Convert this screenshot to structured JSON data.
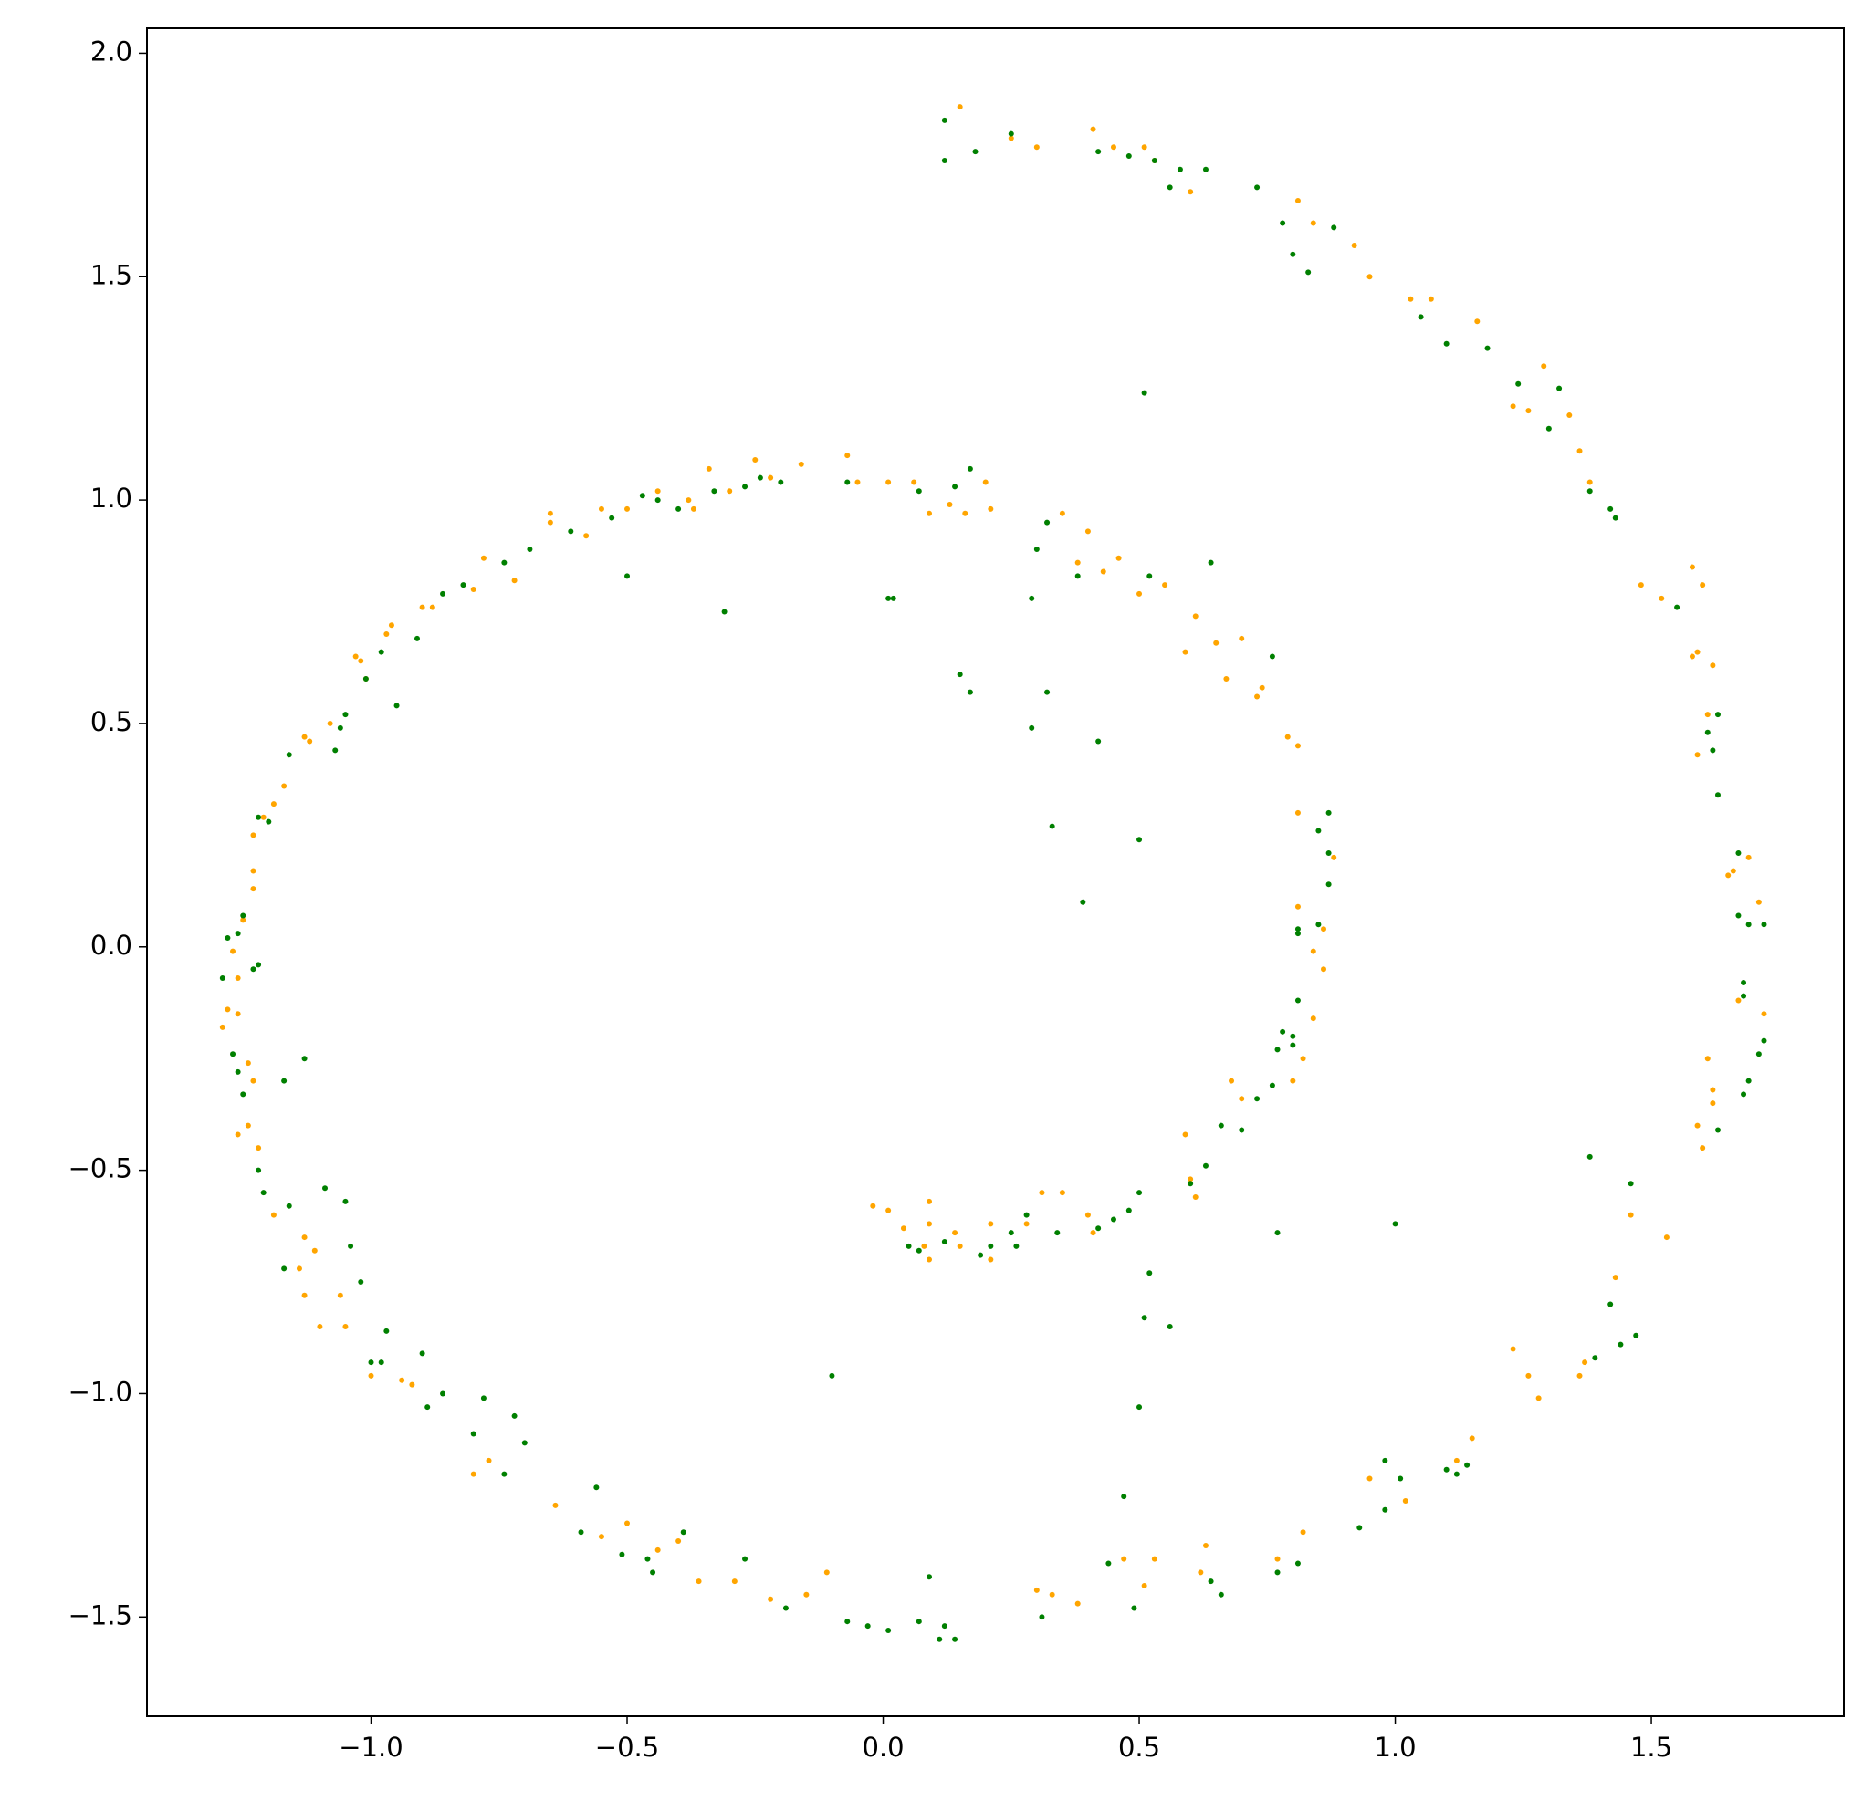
{
  "chart_data": {
    "type": "scatter",
    "xlim": [
      -1.4376,
      1.876
    ],
    "ylim": [
      -1.722,
      2.056
    ],
    "xticks": [
      {
        "value": -1.0,
        "label": "−1.0"
      },
      {
        "value": -0.5,
        "label": "−0.5"
      },
      {
        "value": 0.0,
        "label": "0.0"
      },
      0.5,
      {
        "value": 1.0,
        "label": "1.0"
      },
      1.5
    ],
    "yticks": [
      {
        "value": -1.5,
        "label": "−1.5"
      },
      {
        "value": -1.0,
        "label": "−1.0"
      },
      {
        "value": -0.5,
        "label": "−0.5"
      },
      {
        "value": 0.0,
        "label": "0.0"
      },
      0.5,
      {
        "value": 1.0,
        "label": "1.0"
      },
      1.5,
      {
        "value": 2.0,
        "label": "2.0"
      }
    ],
    "grid": false,
    "series": [
      {
        "color": "#ffa500",
        "x": [
          0.15,
          0.25,
          0.3,
          0.41,
          0.45,
          0.51,
          0.53,
          0.6,
          0.81,
          0.84,
          0.92,
          0.95,
          1.03,
          1.07,
          1.16,
          1.23,
          1.26,
          1.29,
          1.34,
          1.36,
          1.38,
          1.48,
          1.52,
          1.58,
          1.6,
          1.59,
          1.58,
          1.62,
          1.61,
          1.59,
          1.65,
          1.66,
          1.69,
          1.71,
          1.72,
          1.67,
          1.61,
          1.62,
          1.62,
          1.59,
          1.6,
          1.53,
          1.46,
          1.43,
          1.37,
          1.36,
          1.28,
          1.26,
          1.23,
          1.15,
          1.12,
          1.02,
          0.95,
          0.82,
          0.77,
          0.63,
          0.62,
          0.53,
          0.51,
          0.47,
          0.38,
          0.33,
          0.3,
          -0.02,
          0.01,
          0.04,
          0.08,
          0.09,
          0.09,
          0.09,
          0.14,
          0.15,
          0.21,
          0.21,
          0.28,
          0.31,
          0.35,
          0.4,
          0.41,
          0.59,
          0.6,
          0.61,
          0.68,
          0.7,
          0.8,
          0.84,
          0.82,
          0.84,
          0.86,
          0.86,
          0.81,
          0.88,
          0.81,
          0.81,
          0.79,
          0.73,
          0.74,
          0.7,
          0.67,
          0.65,
          0.61,
          0.59,
          0.55,
          0.5,
          0.46,
          0.43,
          0.4,
          0.38,
          0.35,
          0.2,
          0.21,
          0.16,
          0.13,
          0.09,
          0.06,
          0.01,
          -0.05,
          -0.07,
          -0.16,
          -0.22,
          -0.25,
          -0.3,
          -0.34,
          -0.37,
          -0.38,
          -0.44,
          -0.5,
          -0.55,
          -0.58,
          -0.65,
          -0.65,
          -0.72,
          -0.78,
          -0.8,
          -0.88,
          -0.9,
          -0.96,
          -0.97,
          -1.01,
          -1.02,
          -1.03,
          -1.08,
          -1.12,
          -1.13,
          -1.17,
          -1.19,
          -1.21,
          -1.23,
          -1.23,
          -1.23,
          -1.25,
          -1.27,
          -1.28,
          -1.29,
          -1.26,
          -1.26,
          -1.24,
          -1.23,
          -1.24,
          -1.26,
          -1.22,
          -1.19,
          -1.13,
          -1.11,
          -1.14,
          -1.13,
          -1.06,
          -1.1,
          -1.05,
          -1.0,
          -0.94,
          -0.92,
          -0.8,
          -0.77,
          -0.64,
          -0.55,
          -0.5,
          -0.44,
          -0.4,
          -0.36,
          -0.29,
          -0.22,
          -0.15,
          -0.11
        ],
        "values": [
          1.88,
          1.81,
          1.79,
          1.83,
          1.79,
          1.79,
          1.76,
          1.69,
          1.67,
          1.62,
          1.57,
          1.5,
          1.45,
          1.45,
          1.4,
          1.21,
          1.2,
          1.3,
          1.19,
          1.11,
          1.04,
          0.81,
          0.78,
          0.85,
          0.81,
          0.66,
          0.65,
          0.63,
          0.52,
          0.43,
          0.16,
          0.17,
          0.2,
          0.1,
          -0.15,
          -0.12,
          -0.25,
          -0.32,
          -0.35,
          -0.4,
          -0.45,
          -0.65,
          -0.6,
          -0.74,
          -0.93,
          -0.96,
          -1.01,
          -0.96,
          -0.9,
          -1.1,
          -1.15,
          -1.24,
          -1.19,
          -1.31,
          -1.37,
          -1.34,
          -1.4,
          -1.37,
          -1.43,
          -1.37,
          -1.47,
          -1.45,
          -1.44,
          -0.58,
          -0.59,
          -0.63,
          -0.67,
          -0.57,
          -0.62,
          -0.7,
          -0.64,
          -0.67,
          -0.62,
          -0.7,
          -0.62,
          -0.55,
          -0.55,
          -0.6,
          -0.64,
          -0.42,
          -0.52,
          -0.56,
          -0.3,
          -0.34,
          -0.3,
          -0.16,
          -0.25,
          -0.01,
          -0.05,
          0.04,
          0.09,
          0.2,
          0.3,
          0.45,
          0.47,
          0.56,
          0.58,
          0.69,
          0.6,
          0.68,
          0.74,
          0.66,
          0.81,
          0.79,
          0.87,
          0.84,
          0.93,
          0.86,
          0.97,
          1.04,
          0.98,
          0.97,
          0.99,
          0.97,
          1.04,
          1.04,
          1.04,
          1.1,
          1.08,
          1.05,
          1.09,
          1.02,
          1.07,
          0.98,
          1.0,
          1.02,
          0.98,
          0.98,
          0.92,
          0.95,
          0.97,
          0.82,
          0.87,
          0.8,
          0.76,
          0.76,
          0.72,
          0.7,
          0.6,
          0.64,
          0.65,
          0.5,
          0.46,
          0.47,
          0.36,
          0.32,
          0.29,
          0.25,
          0.17,
          0.13,
          0.06,
          -0.01,
          -0.14,
          -0.18,
          -0.07,
          -0.15,
          -0.26,
          -0.3,
          -0.4,
          -0.42,
          -0.45,
          -0.6,
          -0.65,
          -0.68,
          -0.72,
          -0.78,
          -0.78,
          -0.85,
          -0.85,
          -0.96,
          -0.97,
          -0.98,
          -1.18,
          -1.15,
          -1.25,
          -1.32,
          -1.29,
          -1.35,
          -1.33,
          -1.42,
          -1.42,
          -1.46,
          -1.45,
          -1.4
        ]
      },
      {
        "color": "#008000",
        "x": [
          0.12,
          0.12,
          0.18,
          0.25,
          0.42,
          0.48,
          0.53,
          0.56,
          0.58,
          0.63,
          0.73,
          0.78,
          0.8,
          0.83,
          0.88,
          1.05,
          1.1,
          1.18,
          1.24,
          1.32,
          1.3,
          1.42,
          1.43,
          1.38,
          1.55,
          1.61,
          1.62,
          1.63,
          1.63,
          1.67,
          1.67,
          1.69,
          1.72,
          1.68,
          1.68,
          1.72,
          1.71,
          1.69,
          1.68,
          1.63,
          1.46,
          1.38,
          1.42,
          1.47,
          1.44,
          1.39,
          1.0,
          1.1,
          1.12,
          1.14,
          1.01,
          0.98,
          0.98,
          0.93,
          0.81,
          0.77,
          0.66,
          0.64,
          0.49,
          0.44,
          0.31,
          0.47,
          0.5,
          0.51,
          0.52,
          0.56,
          0.51,
          0.15,
          0.17,
          0.29,
          0.32,
          0.42,
          0.33,
          0.5,
          0.39,
          -0.31,
          0.02,
          0.01,
          -0.5,
          -0.95,
          -1.13,
          -1.17,
          -0.1,
          0.09,
          0.77,
          0.05,
          0.07,
          0.12,
          0.19,
          0.21,
          0.25,
          0.26,
          0.28,
          0.34,
          0.42,
          0.45,
          0.48,
          0.5,
          0.6,
          0.63,
          0.66,
          0.7,
          0.73,
          0.76,
          0.77,
          0.78,
          0.8,
          0.81,
          0.8,
          0.81,
          0.85,
          0.87,
          0.87,
          0.85,
          0.87,
          0.81,
          0.76,
          0.64,
          0.52,
          0.38,
          0.3,
          0.32,
          0.29,
          0.17,
          0.14,
          0.07,
          -0.07,
          -0.2,
          -0.24,
          -0.27,
          -0.33,
          -0.4,
          -0.44,
          -0.47,
          -0.53,
          -0.61,
          -0.69,
          -0.74,
          -0.82,
          -0.86,
          -0.91,
          -0.98,
          -1.01,
          -1.05,
          -1.06,
          -1.07,
          -1.16,
          -1.2,
          -1.22,
          -1.25,
          -1.26,
          -1.28,
          -1.29,
          -1.27,
          -1.26,
          -1.25,
          -1.22,
          -1.23,
          -1.22,
          -1.21,
          -1.16,
          -1.17,
          -1.09,
          -1.05,
          -1.04,
          -1.02,
          -0.97,
          -1.0,
          -0.98,
          -0.9,
          -0.89,
          -0.86,
          -0.78,
          -0.8,
          -0.74,
          -0.72,
          -0.7,
          -0.59,
          -0.56,
          -0.51,
          -0.46,
          -0.45,
          -0.39,
          -0.27,
          -0.19,
          -0.07,
          -0.03,
          0.01,
          0.07,
          0.11,
          0.12,
          0.14
        ],
        "values": [
          1.85,
          1.76,
          1.78,
          1.82,
          1.78,
          1.77,
          1.76,
          1.7,
          1.74,
          1.74,
          1.7,
          1.62,
          1.55,
          1.51,
          1.61,
          1.41,
          1.35,
          1.34,
          1.26,
          1.25,
          1.16,
          0.98,
          0.96,
          1.02,
          0.76,
          0.48,
          0.44,
          0.52,
          0.34,
          0.21,
          0.07,
          0.05,
          0.05,
          -0.08,
          -0.11,
          -0.21,
          -0.24,
          -0.3,
          -0.33,
          -0.41,
          -0.53,
          -0.47,
          -0.8,
          -0.87,
          -0.89,
          -0.92,
          -0.62,
          -1.17,
          -1.18,
          -1.16,
          -1.19,
          -1.15,
          -1.26,
          -1.3,
          -1.38,
          -1.4,
          -1.45,
          -1.42,
          -1.48,
          -1.38,
          -1.5,
          -1.23,
          -1.03,
          -0.83,
          -0.73,
          -0.85,
          1.24,
          0.61,
          0.57,
          0.49,
          0.57,
          0.46,
          0.27,
          0.24,
          0.1,
          0.75,
          0.78,
          0.78,
          0.83,
          0.54,
          -0.25,
          -0.3,
          -0.96,
          -1.41,
          -0.64,
          -0.67,
          -0.68,
          -0.66,
          -0.69,
          -0.67,
          -0.64,
          -0.67,
          -0.6,
          -0.64,
          -0.63,
          -0.61,
          -0.59,
          -0.55,
          -0.53,
          -0.49,
          -0.4,
          -0.41,
          -0.34,
          -0.31,
          -0.23,
          -0.19,
          -0.2,
          -0.12,
          -0.22,
          0.03,
          0.05,
          0.14,
          0.21,
          0.26,
          0.3,
          0.04,
          0.65,
          0.86,
          0.83,
          0.83,
          0.89,
          0.95,
          0.78,
          1.07,
          1.03,
          1.02,
          1.04,
          1.04,
          1.05,
          1.03,
          1.02,
          0.98,
          1.0,
          1.01,
          0.96,
          0.93,
          0.89,
          0.86,
          0.81,
          0.79,
          0.69,
          0.66,
          0.6,
          0.52,
          0.49,
          0.44,
          0.43,
          0.28,
          0.29,
          0.07,
          0.03,
          0.02,
          -0.07,
          -0.24,
          -0.28,
          -0.33,
          -0.04,
          -0.05,
          -0.5,
          -0.55,
          -0.58,
          -0.72,
          -0.54,
          -0.57,
          -0.67,
          -0.75,
          -0.86,
          -0.93,
          -0.93,
          -0.91,
          -1.03,
          -1.0,
          -1.01,
          -1.09,
          -1.18,
          -1.05,
          -1.11,
          -1.31,
          -1.21,
          -1.36,
          -1.37,
          -1.4,
          -1.31,
          -1.37,
          -1.48,
          -1.51,
          -1.52,
          -1.53,
          -1.51,
          -1.55,
          -1.52,
          -1.55
        ]
      }
    ]
  }
}
